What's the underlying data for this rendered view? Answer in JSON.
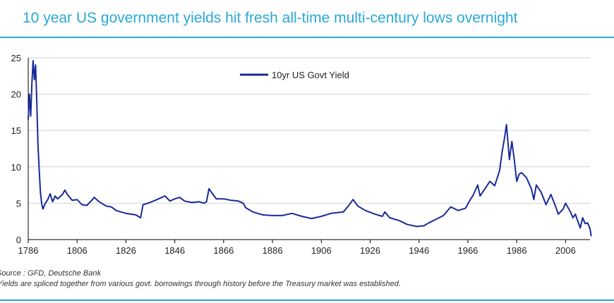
{
  "chart_data": {
    "type": "line",
    "title": "10 year US government yields hit fresh all-time multi-century lows overnight",
    "xlabel": "",
    "ylabel": "",
    "xlim": [
      1786,
      2016
    ],
    "ylim": [
      0,
      25
    ],
    "x_ticks": [
      1786,
      1806,
      1826,
      1846,
      1866,
      1886,
      1906,
      1926,
      1946,
      1966,
      1986,
      2006
    ],
    "y_ticks": [
      0,
      5,
      10,
      15,
      20,
      25
    ],
    "grid": "horizontal",
    "legend_position": "top-center",
    "series": [
      {
        "name": "10yr US Govt Yield",
        "color": "#1a2a99",
        "points": [
          [
            1786,
            16.5
          ],
          [
            1786.5,
            20.0
          ],
          [
            1787,
            17.0
          ],
          [
            1787.5,
            21.5
          ],
          [
            1788,
            24.6
          ],
          [
            1788.5,
            22.0
          ],
          [
            1789,
            24.0
          ],
          [
            1789.5,
            19.0
          ],
          [
            1790,
            13.0
          ],
          [
            1790.5,
            9.5
          ],
          [
            1791,
            6.5
          ],
          [
            1791.5,
            5.0
          ],
          [
            1792,
            4.2
          ],
          [
            1793,
            5.0
          ],
          [
            1794,
            5.5
          ],
          [
            1795,
            6.3
          ],
          [
            1796,
            5.2
          ],
          [
            1797,
            6.0
          ],
          [
            1798,
            5.6
          ],
          [
            1800,
            6.2
          ],
          [
            1801,
            6.8
          ],
          [
            1802,
            6.2
          ],
          [
            1804,
            5.4
          ],
          [
            1806,
            5.5
          ],
          [
            1808,
            4.8
          ],
          [
            1810,
            4.7
          ],
          [
            1812,
            5.4
          ],
          [
            1813,
            5.8
          ],
          [
            1815,
            5.2
          ],
          [
            1818,
            4.6
          ],
          [
            1820,
            4.5
          ],
          [
            1822,
            4.0
          ],
          [
            1824,
            3.8
          ],
          [
            1826,
            3.6
          ],
          [
            1828,
            3.5
          ],
          [
            1830,
            3.4
          ],
          [
            1832,
            3.0
          ],
          [
            1833,
            4.8
          ],
          [
            1835,
            5.0
          ],
          [
            1838,
            5.4
          ],
          [
            1840,
            5.7
          ],
          [
            1842,
            6.0
          ],
          [
            1844,
            5.3
          ],
          [
            1846,
            5.6
          ],
          [
            1848,
            5.8
          ],
          [
            1850,
            5.3
          ],
          [
            1853,
            5.1
          ],
          [
            1856,
            5.2
          ],
          [
            1858,
            5.0
          ],
          [
            1859,
            5.2
          ],
          [
            1860,
            7.0
          ],
          [
            1861,
            6.5
          ],
          [
            1863,
            5.6
          ],
          [
            1866,
            5.6
          ],
          [
            1869,
            5.4
          ],
          [
            1872,
            5.3
          ],
          [
            1874,
            5.0
          ],
          [
            1875,
            4.4
          ],
          [
            1878,
            3.8
          ],
          [
            1882,
            3.4
          ],
          [
            1886,
            3.3
          ],
          [
            1890,
            3.3
          ],
          [
            1894,
            3.6
          ],
          [
            1898,
            3.2
          ],
          [
            1902,
            2.9
          ],
          [
            1906,
            3.2
          ],
          [
            1910,
            3.6
          ],
          [
            1915,
            3.8
          ],
          [
            1917,
            4.6
          ],
          [
            1919,
            5.5
          ],
          [
            1921,
            4.6
          ],
          [
            1924,
            4.0
          ],
          [
            1928,
            3.5
          ],
          [
            1931,
            3.2
          ],
          [
            1932,
            3.8
          ],
          [
            1934,
            3.0
          ],
          [
            1938,
            2.6
          ],
          [
            1941,
            2.1
          ],
          [
            1945,
            1.8
          ],
          [
            1948,
            1.9
          ],
          [
            1950,
            2.3
          ],
          [
            1953,
            2.8
          ],
          [
            1956,
            3.3
          ],
          [
            1959,
            4.5
          ],
          [
            1962,
            4.0
          ],
          [
            1965,
            4.3
          ],
          [
            1967,
            5.5
          ],
          [
            1968,
            6.0
          ],
          [
            1970,
            7.5
          ],
          [
            1971,
            6.0
          ],
          [
            1973,
            7.0
          ],
          [
            1975,
            8.0
          ],
          [
            1977,
            7.4
          ],
          [
            1979,
            9.5
          ],
          [
            1980,
            12.0
          ],
          [
            1981,
            14.0
          ],
          [
            1981.8,
            15.8
          ],
          [
            1982.5,
            13.0
          ],
          [
            1983,
            11.0
          ],
          [
            1984,
            13.5
          ],
          [
            1985,
            11.0
          ],
          [
            1986,
            8.0
          ],
          [
            1987,
            9.0
          ],
          [
            1988,
            9.2
          ],
          [
            1990,
            8.5
          ],
          [
            1992,
            7.0
          ],
          [
            1993,
            5.5
          ],
          [
            1994,
            7.5
          ],
          [
            1996,
            6.5
          ],
          [
            1998,
            4.8
          ],
          [
            2000,
            6.2
          ],
          [
            2002,
            4.5
          ],
          [
            2003,
            3.5
          ],
          [
            2005,
            4.2
          ],
          [
            2006,
            5.0
          ],
          [
            2008,
            3.8
          ],
          [
            2009,
            3.0
          ],
          [
            2010,
            3.5
          ],
          [
            2012,
            1.6
          ],
          [
            2013,
            3.0
          ],
          [
            2014,
            2.2
          ],
          [
            2015,
            2.3
          ],
          [
            2016,
            1.5
          ],
          [
            2016.5,
            0.5
          ]
        ]
      }
    ],
    "source": "Source : GFD, Deutsche Bank",
    "note": "Yields are spliced together from various govt. borrowings through history before the Treasury market was established."
  }
}
